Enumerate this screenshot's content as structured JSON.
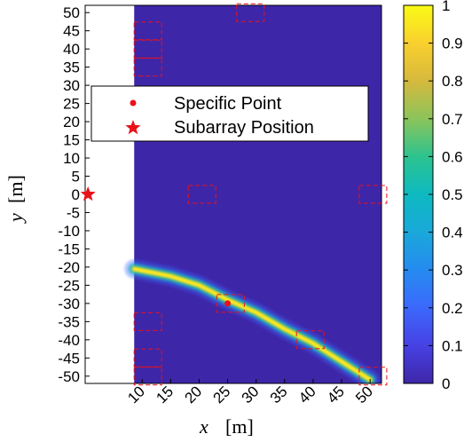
{
  "chart_data": {
    "type": "heatmap",
    "title": "",
    "xlabel": {
      "var": "x",
      "unit": "[m]"
    },
    "ylabel": {
      "var": "y",
      "unit": "[m]"
    },
    "xlim": [
      0,
      52
    ],
    "ylim": [
      -52,
      52
    ],
    "data_x_start": 8.6,
    "x_ticks": [
      10,
      15,
      20,
      25,
      30,
      35,
      40,
      45,
      50
    ],
    "y_ticks": [
      50,
      45,
      40,
      35,
      30,
      25,
      20,
      15,
      10,
      5,
      0,
      -5,
      -10,
      -15,
      -20,
      -25,
      -30,
      -35,
      -40,
      -45,
      -50
    ],
    "colorbar": {
      "ticks": [
        1,
        0.9,
        0.8,
        0.7,
        0.6,
        0.5,
        0.4,
        0.3,
        0.2,
        0.1,
        0
      ],
      "range": [
        0,
        1
      ],
      "colormap": "parula"
    },
    "beam_curve": [
      {
        "x": 8.6,
        "y": -20.5
      },
      {
        "x": 15,
        "y": -22.5
      },
      {
        "x": 20,
        "y": -25
      },
      {
        "x": 25,
        "y": -29
      },
      {
        "x": 30,
        "y": -32.5
      },
      {
        "x": 35,
        "y": -37
      },
      {
        "x": 40,
        "y": -41
      },
      {
        "x": 45,
        "y": -46
      },
      {
        "x": 50,
        "y": -51
      }
    ],
    "specific_point": {
      "x": 25,
      "y": -30
    },
    "subarray_position": {
      "x": 0.5,
      "y": 0
    },
    "subarrays": [
      {
        "x": 11,
        "y": 45
      },
      {
        "x": 11,
        "y": 40
      },
      {
        "x": 11,
        "y": 35
      },
      {
        "x": 29,
        "y": 50
      },
      {
        "x": 20.5,
        "y": 0
      },
      {
        "x": 50.5,
        "y": 0
      },
      {
        "x": 11,
        "y": -35
      },
      {
        "x": 11,
        "y": -45
      },
      {
        "x": 11,
        "y": -50
      },
      {
        "x": 25.5,
        "y": -30
      },
      {
        "x": 39.5,
        "y": -40
      },
      {
        "x": 50.5,
        "y": -50
      }
    ],
    "legend": {
      "placement": "upper-left",
      "entries": [
        "Specific Point",
        "Subarray Position"
      ]
    },
    "colors": {
      "background": "#3e26a8",
      "marker": "#e8131a",
      "subarray_box": "#e8131a"
    }
  }
}
